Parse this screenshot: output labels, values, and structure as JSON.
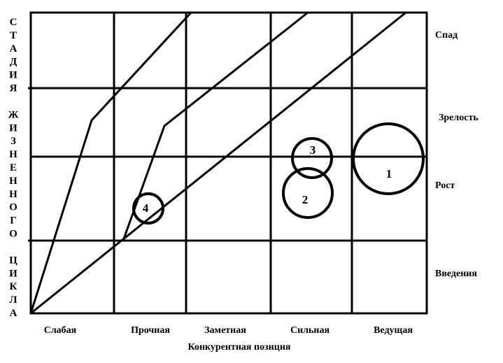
{
  "y_axis_title_letters": [
    "С",
    "Т",
    "А",
    "Д",
    "И",
    "Я",
    "",
    "Ж",
    "И",
    "З",
    "Н",
    "Е",
    "Н",
    "Н",
    "О",
    "Г",
    "О",
    "",
    "Ц",
    "И",
    "К",
    "Л",
    "А"
  ],
  "stages": [
    "Спад",
    "Зрелость",
    "Рост",
    "Введения"
  ],
  "positions": [
    "Слабая",
    "Прочная",
    "Заметная",
    "Сильная",
    "Ведущая"
  ],
  "x_axis_title": "Конкурентная позиция",
  "circles": [
    {
      "label": "1"
    },
    {
      "label": "2"
    },
    {
      "label": "3"
    },
    {
      "label": "4"
    }
  ],
  "colors": {
    "line": "#000000",
    "background": "#ffffff"
  }
}
